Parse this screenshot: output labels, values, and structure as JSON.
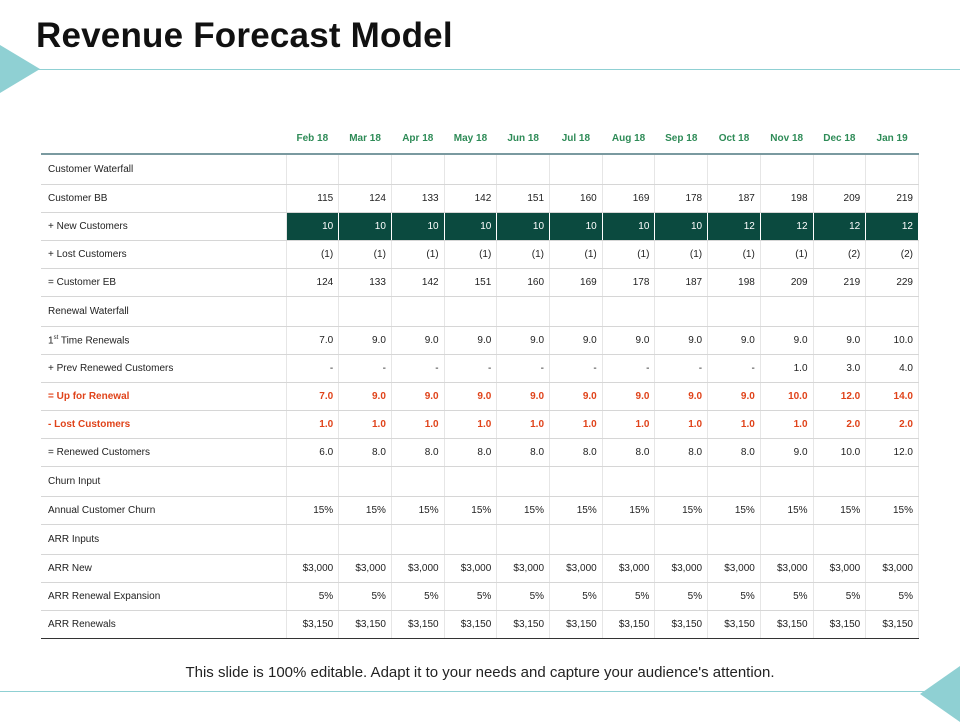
{
  "title": "Revenue Forecast Model",
  "months": [
    "Feb 18",
    "Mar 18",
    "Apr 18",
    "May 18",
    "Jun 18",
    "Jul 18",
    "Aug 18",
    "Sep 18",
    "Oct 18",
    "Nov 18",
    "Dec 18",
    "Jan 19"
  ],
  "rows": [
    {
      "label": "Customer Waterfall",
      "kind": "section",
      "values": []
    },
    {
      "label": "Customer BB",
      "kind": "normal",
      "values": [
        "115",
        "124",
        "133",
        "142",
        "151",
        "160",
        "169",
        "178",
        "187",
        "198",
        "209",
        "219"
      ]
    },
    {
      "label": "+ New Customers",
      "kind": "dark",
      "values": [
        "10",
        "10",
        "10",
        "10",
        "10",
        "10",
        "10",
        "10",
        "12",
        "12",
        "12",
        "12"
      ]
    },
    {
      "label": "+ Lost Customers",
      "kind": "normal",
      "values": [
        "(1)",
        "(1)",
        "(1)",
        "(1)",
        "(1)",
        "(1)",
        "(1)",
        "(1)",
        "(1)",
        "(1)",
        "(2)",
        "(2)"
      ]
    },
    {
      "label": "= Customer EB",
      "kind": "normal",
      "values": [
        "124",
        "133",
        "142",
        "151",
        "160",
        "169",
        "178",
        "187",
        "198",
        "209",
        "219",
        "229"
      ]
    },
    {
      "label": "Renewal Waterfall",
      "kind": "section",
      "values": []
    },
    {
      "label": "1st Time Renewals",
      "label_main": "1",
      "label_sup": "st",
      "label_rest": " Time Renewals",
      "kind": "normal",
      "values": [
        "7.0",
        "9.0",
        "9.0",
        "9.0",
        "9.0",
        "9.0",
        "9.0",
        "9.0",
        "9.0",
        "9.0",
        "9.0",
        "10.0"
      ]
    },
    {
      "label": "+ Prev Renewed Customers",
      "kind": "normal",
      "values": [
        "-",
        "-",
        "-",
        "-",
        "-",
        "-",
        "-",
        "-",
        "-",
        "1.0",
        "3.0",
        "4.0"
      ]
    },
    {
      "label": "= Up for Renewal",
      "kind": "red",
      "values": [
        "7.0",
        "9.0",
        "9.0",
        "9.0",
        "9.0",
        "9.0",
        "9.0",
        "9.0",
        "9.0",
        "10.0",
        "12.0",
        "14.0"
      ]
    },
    {
      "label": "- Lost Customers",
      "kind": "red",
      "values": [
        "1.0",
        "1.0",
        "1.0",
        "1.0",
        "1.0",
        "1.0",
        "1.0",
        "1.0",
        "1.0",
        "1.0",
        "2.0",
        "2.0"
      ]
    },
    {
      "label": "= Renewed Customers",
      "kind": "normal",
      "values": [
        "6.0",
        "8.0",
        "8.0",
        "8.0",
        "8.0",
        "8.0",
        "8.0",
        "8.0",
        "8.0",
        "9.0",
        "10.0",
        "12.0"
      ]
    },
    {
      "label": "Churn Input",
      "kind": "section",
      "values": []
    },
    {
      "label": "Annual Customer Churn",
      "kind": "normal",
      "values": [
        "15%",
        "15%",
        "15%",
        "15%",
        "15%",
        "15%",
        "15%",
        "15%",
        "15%",
        "15%",
        "15%",
        "15%"
      ]
    },
    {
      "label": "ARR Inputs",
      "kind": "section",
      "values": []
    },
    {
      "label": "ARR New",
      "kind": "normal",
      "values": [
        "$3,000",
        "$3,000",
        "$3,000",
        "$3,000",
        "$3,000",
        "$3,000",
        "$3,000",
        "$3,000",
        "$3,000",
        "$3,000",
        "$3,000",
        "$3,000"
      ]
    },
    {
      "label": "ARR Renewal Expansion",
      "kind": "normal",
      "values": [
        "5%",
        "5%",
        "5%",
        "5%",
        "5%",
        "5%",
        "5%",
        "5%",
        "5%",
        "5%",
        "5%",
        "5%"
      ]
    },
    {
      "label": "ARR Renewals",
      "kind": "normal",
      "values": [
        "$3,150",
        "$3,150",
        "$3,150",
        "$3,150",
        "$3,150",
        "$3,150",
        "$3,150",
        "$3,150",
        "$3,150",
        "$3,150",
        "$3,150",
        "$3,150"
      ]
    }
  ],
  "footer": "This slide is 100% editable. Adapt it to your needs and capture your audience's attention.",
  "colors": {
    "accent_teal": "#8fd0d3",
    "header_green": "#2e8b57",
    "dark_row_bg": "#0b4a3f",
    "highlight_red": "#e0431a"
  }
}
